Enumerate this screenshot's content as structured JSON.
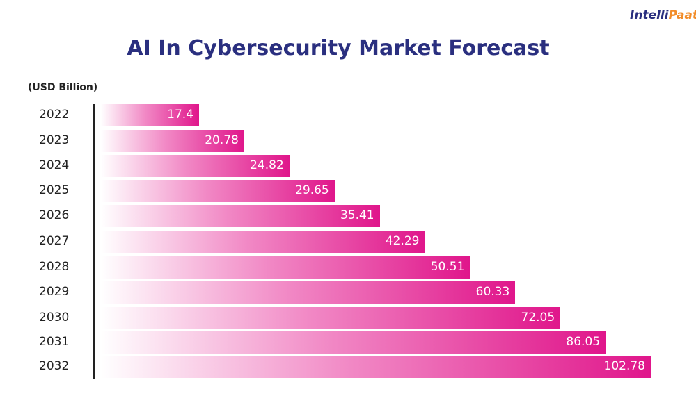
{
  "chart_data": {
    "type": "bar",
    "orientation": "horizontal",
    "title": "AI In Cybersecurity Market Forecast",
    "unit_label": "(USD Billion)",
    "categories": [
      "2022",
      "2023",
      "2024",
      "2025",
      "2026",
      "2027",
      "2028",
      "2029",
      "2030",
      "2031",
      "2032"
    ],
    "values": [
      17.4,
      20.78,
      24.82,
      29.65,
      35.41,
      42.29,
      50.51,
      60.33,
      72.05,
      86.05,
      102.78
    ],
    "value_labels": [
      "17.4",
      "20.78",
      "24.82",
      "29.65",
      "35.41",
      "42.29",
      "50.51",
      "60.33",
      "72.05",
      "86.05",
      "102.78"
    ],
    "grid": false,
    "bar_color": "#e0168b"
  },
  "logo": {
    "text_i": "I",
    "text_rest": "ntelli",
    "text_accent": "Paat"
  }
}
